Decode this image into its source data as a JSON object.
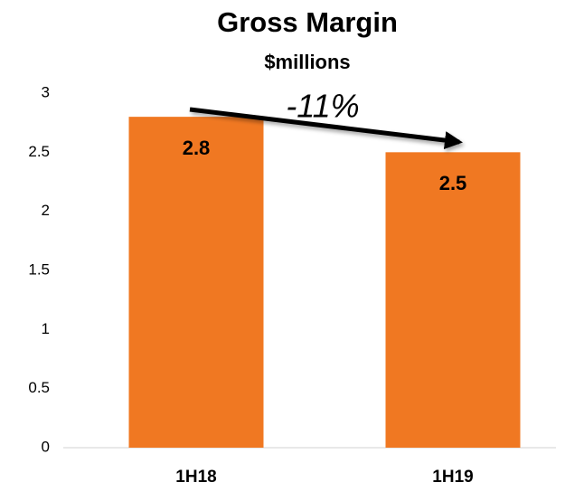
{
  "chart_data": {
    "type": "bar",
    "title": "Gross Margin",
    "subtitle": "$millions",
    "categories": [
      "1H18",
      "1H19"
    ],
    "values": [
      2.8,
      2.5
    ],
    "color": "#f07822",
    "ylim": [
      0,
      3
    ],
    "yticks": [
      0,
      0.5,
      1,
      1.5,
      2,
      2.5,
      3
    ],
    "grid": false,
    "annotation": "-11%"
  }
}
